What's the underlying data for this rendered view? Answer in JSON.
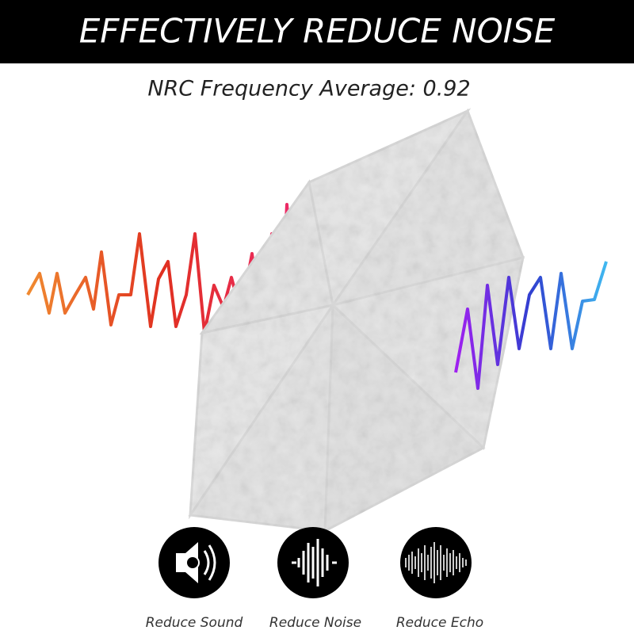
{
  "header": {
    "title": "EFFECTIVELY REDUCE NOISE"
  },
  "subtitle": "NRC Frequency Average: 0.92",
  "features": [
    {
      "label": "Reduce Sound"
    },
    {
      "label": "Reduce Noise"
    },
    {
      "label": "Reduce Echo"
    }
  ]
}
